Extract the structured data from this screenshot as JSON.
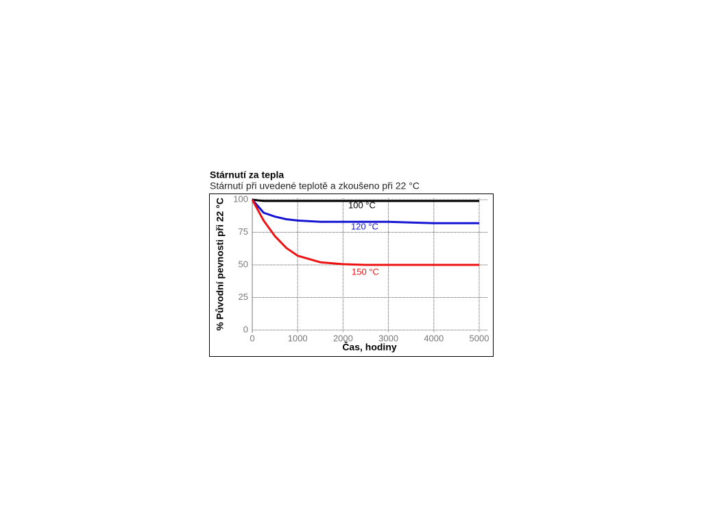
{
  "chart_data": {
    "type": "line",
    "title": "Stárnutí za tepla",
    "subtitle": "Stárnutí při uvedené teplotě a zkoušeno při 22 °C",
    "x_label": "Čas, hodiny",
    "y_label": "% Původní pevnosti při 22 °C",
    "x": [
      0,
      250,
      500,
      750,
      1000,
      1500,
      2000,
      2500,
      3000,
      3500,
      4000,
      4500,
      5000
    ],
    "series": [
      {
        "name": "100 °C",
        "color": "#000000",
        "values": [
          100,
          99,
          99,
          99,
          99,
          99,
          99,
          99,
          99,
          99,
          99,
          99,
          99
        ]
      },
      {
        "name": "120 °C",
        "color": "#1414d2",
        "values": [
          100,
          90,
          87,
          85,
          84,
          83,
          83,
          83,
          83,
          82.5,
          82,
          82,
          82
        ]
      },
      {
        "name": "150 °C",
        "color": "#ee1111",
        "values": [
          100,
          84,
          72,
          63,
          57,
          52,
          50.5,
          50,
          50,
          50,
          50,
          50,
          50
        ]
      }
    ],
    "xlim": [
      0,
      5000
    ],
    "ylim": [
      0,
      100
    ],
    "xticks": [
      0,
      1000,
      2000,
      3000,
      4000,
      5000
    ],
    "yticks": [
      0,
      25,
      50,
      75,
      100
    ],
    "grid": true
  }
}
